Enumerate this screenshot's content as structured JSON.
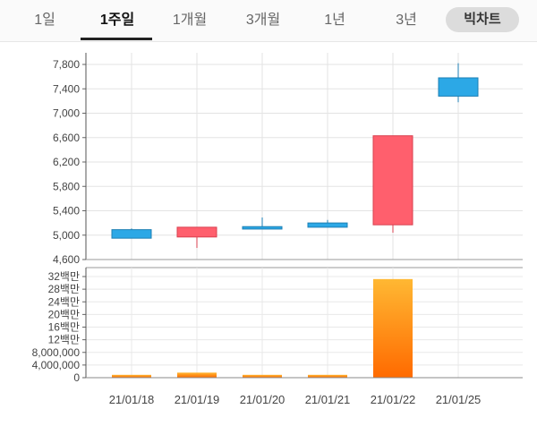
{
  "tabs": [
    {
      "label": "1일",
      "active": false
    },
    {
      "label": "1주일",
      "active": true
    },
    {
      "label": "1개월",
      "active": false
    },
    {
      "label": "3개월",
      "active": false
    },
    {
      "label": "1년",
      "active": false
    },
    {
      "label": "3년",
      "active": false
    }
  ],
  "toggle_label": "빅차트",
  "colors": {
    "up": "#ff5f6d",
    "down": "#2ca8e6",
    "volume_top": "#ffb833",
    "volume_bottom": "#ff6a00"
  },
  "chart_data": [
    {
      "type": "candlestick",
      "dates": [
        "21/01/18",
        "21/01/19",
        "21/01/20",
        "21/01/21",
        "21/01/22",
        "21/01/25"
      ],
      "candles": [
        {
          "open": 5090,
          "close": 4950,
          "high": 5110,
          "low": 4950
        },
        {
          "open": 4970,
          "close": 5130,
          "high": 5130,
          "low": 4790
        },
        {
          "open": 5140,
          "close": 5100,
          "high": 5290,
          "low": 5100
        },
        {
          "open": 5200,
          "close": 5130,
          "high": 5250,
          "low": 5130
        },
        {
          "open": 5170,
          "close": 6630,
          "high": 6630,
          "low": 5040
        },
        {
          "open": 7580,
          "close": 7280,
          "high": 7820,
          "low": 7180
        }
      ],
      "yticks": [
        "7,800",
        "7,400",
        "7,000",
        "6,600",
        "6,200",
        "5,800",
        "5,400",
        "5,000",
        "4,600"
      ],
      "ylim": [
        4600,
        7950
      ],
      "grid": true
    },
    {
      "type": "bar",
      "categories": [
        "21/01/18",
        "21/01/19",
        "21/01/20",
        "21/01/21",
        "21/01/22",
        "21/01/25"
      ],
      "values": [
        900000,
        1600000,
        900000,
        900000,
        31200000,
        0
      ],
      "yticks": [
        "32백만",
        "28백만",
        "24백만",
        "20백만",
        "16백만",
        "12백만",
        "8,000,000",
        "4,000,000",
        "0"
      ],
      "ytick_values": [
        32000000,
        28000000,
        24000000,
        20000000,
        16000000,
        12000000,
        8000000,
        4000000,
        0
      ],
      "ylim": [
        0,
        34000000
      ],
      "grid": true
    }
  ]
}
